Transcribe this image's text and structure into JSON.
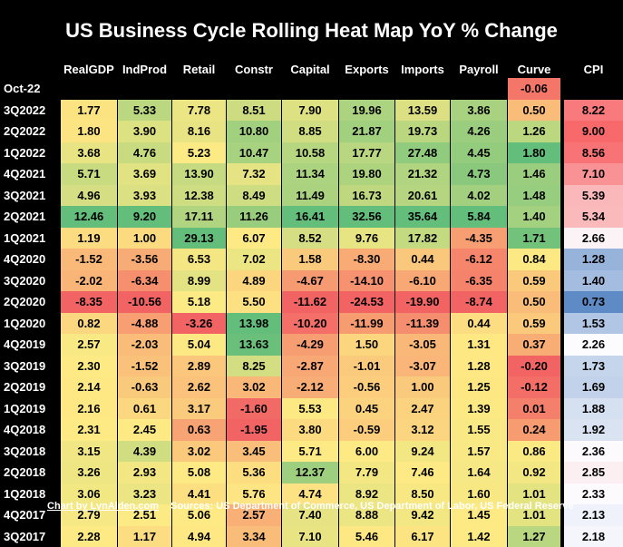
{
  "chart_data": {
    "type": "heatmap",
    "title": "US Business Cycle Rolling Heat Map YoY % Change",
    "columns": [
      "RealGDP",
      "IndProd",
      "Retail",
      "Constr",
      "Capital",
      "Exports",
      "Imports",
      "Payroll",
      "Curve",
      "CPI"
    ],
    "rows": [
      {
        "label": "Oct-22",
        "values": [
          null,
          null,
          null,
          null,
          null,
          null,
          null,
          null,
          -0.06,
          null
        ]
      },
      {
        "label": "3Q2022",
        "values": [
          1.77,
          5.33,
          7.78,
          8.51,
          7.9,
          19.96,
          13.59,
          3.86,
          0.5,
          8.22
        ]
      },
      {
        "label": "2Q2022",
        "values": [
          1.8,
          3.9,
          8.16,
          10.8,
          8.85,
          21.87,
          19.73,
          4.26,
          1.26,
          9.0
        ]
      },
      {
        "label": "1Q2022",
        "values": [
          3.68,
          4.76,
          5.23,
          10.47,
          10.58,
          17.77,
          27.48,
          4.45,
          1.8,
          8.56
        ]
      },
      {
        "label": "4Q2021",
        "values": [
          5.71,
          3.69,
          13.9,
          7.32,
          11.34,
          19.8,
          21.32,
          4.73,
          1.46,
          7.1
        ]
      },
      {
        "label": "3Q2021",
        "values": [
          4.96,
          3.93,
          12.38,
          8.49,
          11.49,
          16.73,
          20.61,
          4.02,
          1.48,
          5.39
        ]
      },
      {
        "label": "2Q2021",
        "values": [
          12.46,
          9.2,
          17.11,
          11.26,
          16.41,
          32.56,
          35.64,
          5.84,
          1.4,
          5.34
        ]
      },
      {
        "label": "1Q2021",
        "values": [
          1.19,
          1.0,
          29.13,
          6.07,
          8.52,
          9.76,
          17.82,
          -4.35,
          1.71,
          2.66
        ]
      },
      {
        "label": "4Q2020",
        "values": [
          -1.52,
          -3.56,
          6.53,
          7.02,
          1.58,
          -8.3,
          0.44,
          -6.12,
          0.84,
          1.28
        ]
      },
      {
        "label": "3Q2020",
        "values": [
          -2.02,
          -6.34,
          8.99,
          4.89,
          -4.67,
          -14.1,
          -6.1,
          -6.35,
          0.59,
          1.4
        ]
      },
      {
        "label": "2Q2020",
        "values": [
          -8.35,
          -10.56,
          5.18,
          5.5,
          -11.62,
          -24.53,
          -19.9,
          -8.74,
          0.5,
          0.73
        ]
      },
      {
        "label": "1Q2020",
        "values": [
          0.82,
          -4.88,
          -3.26,
          13.98,
          -10.2,
          -11.99,
          -11.39,
          0.44,
          0.59,
          1.53
        ]
      },
      {
        "label": "4Q2019",
        "values": [
          2.57,
          -2.03,
          5.04,
          13.63,
          -4.29,
          1.5,
          -3.05,
          1.31,
          0.37,
          2.26
        ]
      },
      {
        "label": "3Q2019",
        "values": [
          2.3,
          -1.52,
          2.89,
          8.25,
          -2.87,
          -1.01,
          -3.07,
          1.28,
          -0.2,
          1.73
        ]
      },
      {
        "label": "2Q2019",
        "values": [
          2.14,
          -0.63,
          2.62,
          3.02,
          -2.12,
          -0.56,
          1.0,
          1.25,
          -0.12,
          1.69
        ]
      },
      {
        "label": "1Q2019",
        "values": [
          2.16,
          0.61,
          3.17,
          -1.6,
          5.53,
          0.45,
          2.47,
          1.39,
          0.01,
          1.88
        ]
      },
      {
        "label": "4Q2018",
        "values": [
          2.31,
          2.45,
          0.63,
          -1.95,
          3.8,
          -0.59,
          3.12,
          1.55,
          0.24,
          1.92
        ]
      },
      {
        "label": "3Q2018",
        "values": [
          3.15,
          4.39,
          3.02,
          3.45,
          5.71,
          6.0,
          9.24,
          1.57,
          0.86,
          2.36
        ]
      },
      {
        "label": "2Q2018",
        "values": [
          3.26,
          2.93,
          5.08,
          5.36,
          12.37,
          7.79,
          7.46,
          1.64,
          0.92,
          2.85
        ]
      },
      {
        "label": "1Q2018",
        "values": [
          3.06,
          3.23,
          4.41,
          5.76,
          4.74,
          8.92,
          8.5,
          1.6,
          1.01,
          2.33
        ]
      },
      {
        "label": "4Q2017",
        "values": [
          2.79,
          2.51,
          5.06,
          2.57,
          7.4,
          8.88,
          9.42,
          1.45,
          1.01,
          2.13
        ]
      },
      {
        "label": "3Q2017",
        "values": [
          2.28,
          1.17,
          4.94,
          3.34,
          7.1,
          5.46,
          6.17,
          1.42,
          1.27,
          2.18
        ]
      }
    ]
  },
  "footer": {
    "link": "Chart by LynAlden.com",
    "sources": "Sources: US Department of Commerce, US Department of Labor, US Federal Reserve"
  }
}
